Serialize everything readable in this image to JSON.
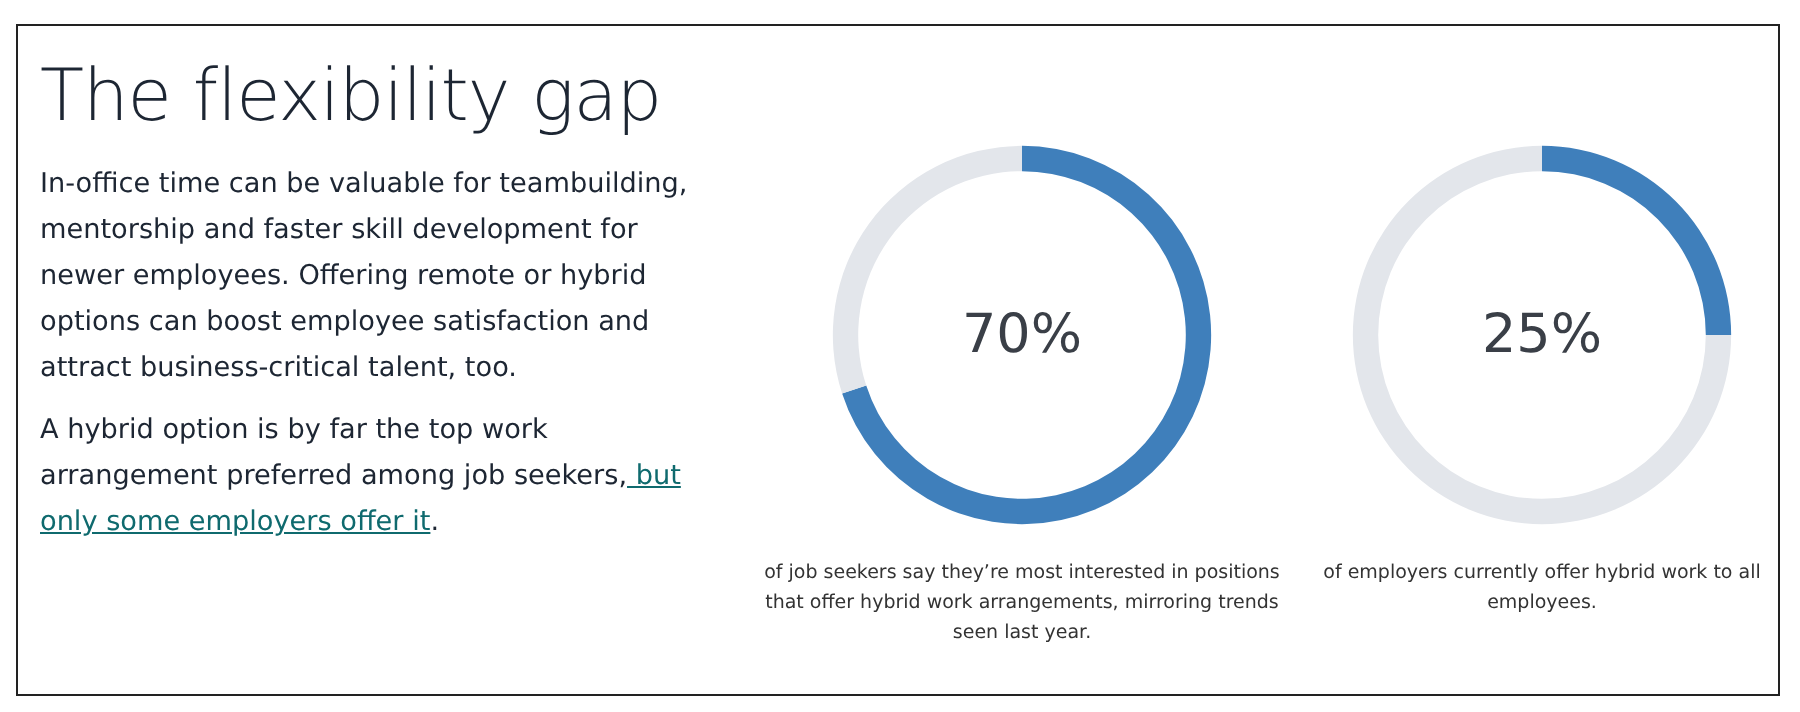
{
  "chart_data": [
    {
      "type": "other",
      "title": "The flexibility gap",
      "annotations": [
        "In-office time can be valuable for teambuilding, mentorship and faster skill development for newer employees. Offering remote or hybrid options can boost employee satisfaction and attract business-critical talent, too.",
        "A hybrid option is by far the top work arrangement preferred among job seekers,",
        "but only some employers offer it",
        "."
      ]
    },
    {
      "type": "donut",
      "categories": [
        null,
        null
      ],
      "values": [
        70,
        30
      ],
      "colors": [
        "#3f7fbb",
        "#e3e6eb"
      ],
      "annotations": [
        "70%",
        "of job seekers say they’re most interested in positions that offer hybrid work arrangements, mirroring trends seen last year."
      ]
    },
    {
      "type": "donut",
      "categories": [
        null,
        null
      ],
      "values": [
        25,
        75
      ],
      "colors": [
        "#3f7fbb",
        "#e3e6eb"
      ],
      "annotations": [
        "25%",
        "of employers currently offer hybrid work to all employees."
      ]
    }
  ]
}
